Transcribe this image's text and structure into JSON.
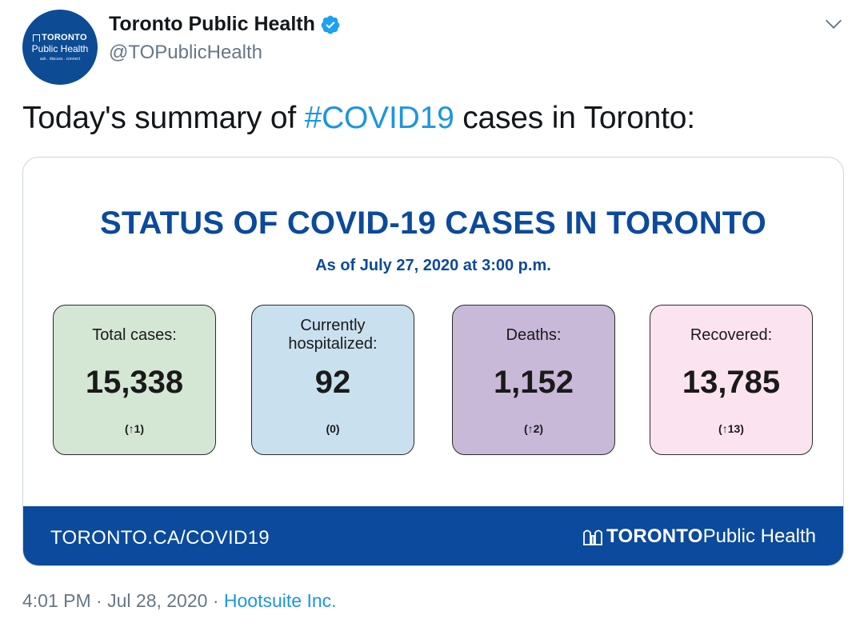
{
  "account": {
    "name": "Toronto Public Health",
    "handle": "@TOPublicHealth",
    "avatar": {
      "line1": "TORONTO",
      "line2": "Public Health",
      "line3": "ask . discuss . connect"
    }
  },
  "tweet": {
    "text_prefix": "Today's summary of ",
    "hashtag": "#COVID19",
    "text_suffix": " cases in Toronto:"
  },
  "card": {
    "title": "STATUS OF COVID-19 CASES IN TORONTO",
    "subtitle": "As of July 27, 2020 at 3:00 p.m.",
    "stats": [
      {
        "label": "Total cases:",
        "value": "15,338",
        "change": "(↑1)",
        "color": "#d4e6d4"
      },
      {
        "label_line1": "Currently",
        "label_line2": "hospitalized:",
        "value": "92",
        "change": "(0)",
        "color": "#c9e0ef"
      },
      {
        "label": "Deaths:",
        "value": "1,152",
        "change": "(↑2)",
        "color": "#c8b9d8"
      },
      {
        "label": "Recovered:",
        "value": "13,785",
        "change": "(↑13)",
        "color": "#fbe4ef"
      }
    ],
    "footer_url": "TORONTO.CA/COVID19",
    "footer_logo_bold": "TORONTO",
    "footer_logo_rest": "Public Health"
  },
  "meta": {
    "time": "4:01 PM",
    "separator": " · ",
    "date": "Jul 28, 2020",
    "source": "Hootsuite Inc."
  },
  "colors": {
    "brand_blue": "#0b4a9c",
    "link_blue": "#1b95e0",
    "muted_gray": "#657786"
  },
  "icons": {
    "verified": "verified-badge-icon",
    "menu": "chevron-down-icon",
    "logo": "toronto-city-hall-icon"
  }
}
